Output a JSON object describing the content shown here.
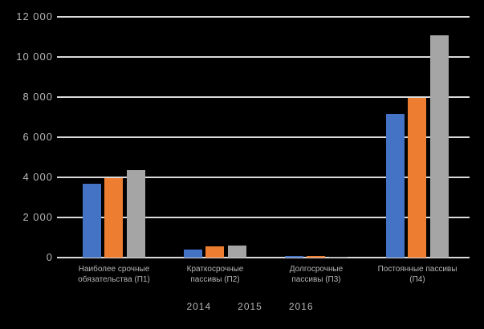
{
  "chart_data": {
    "type": "bar",
    "title": "",
    "xlabel": "",
    "ylabel": "",
    "categories": [
      "Наиболее срочные обязательства (П1)",
      "Краткосрочные пассивы (П2)",
      "Долгосрочные пассивы (П3)",
      "Постоянные пассивы (П4)"
    ],
    "series": [
      {
        "name": "2014",
        "color": "#4472C4",
        "values": [
          3700,
          400,
          100,
          7150
        ]
      },
      {
        "name": "2015",
        "color": "#ED7D31",
        "values": [
          3950,
          550,
          80,
          7950
        ]
      },
      {
        "name": "2016",
        "color": "#A5A5A5",
        "values": [
          4350,
          600,
          60,
          11100
        ]
      }
    ],
    "y_axis": {
      "min": 0,
      "max": 12000,
      "tick_values": [
        0,
        2000,
        4000,
        6000,
        8000,
        10000,
        12000
      ],
      "tick_labels": [
        "0",
        "2 000",
        "4 000",
        "6 000",
        "8 000",
        "10 000",
        "12 000"
      ]
    },
    "legend_position": "bottom",
    "grid": true
  },
  "colors": {
    "background": "#000000",
    "gridline": "#dadada",
    "text": "#b5b5b5"
  }
}
